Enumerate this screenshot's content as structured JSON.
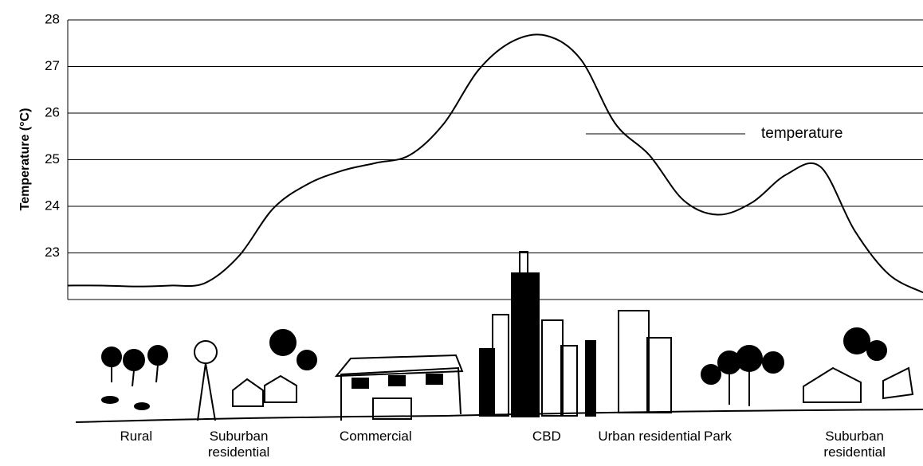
{
  "chart_data": {
    "type": "line",
    "y_label": "Temperature (°C)",
    "categories": [
      null,
      null,
      "Rural",
      null,
      null,
      "Suburban residential",
      null,
      null,
      null,
      "Commercial",
      null,
      null,
      null,
      null,
      "CBD",
      null,
      null,
      "Urban residential",
      null,
      "Park",
      null,
      null,
      null,
      "Suburban residential",
      null,
      null
    ],
    "series": [
      {
        "name": "temperature",
        "color": "#000000",
        "values": [
          22.3,
          22.3,
          22.28,
          22.3,
          22.35,
          22.93,
          23.95,
          24.47,
          24.76,
          24.93,
          25.1,
          25.78,
          26.92,
          27.54,
          27.66,
          27.15,
          25.78,
          25.1,
          24.13,
          23.82,
          24.08,
          24.68,
          24.85,
          23.48,
          22.54,
          22.15
        ]
      }
    ],
    "ylim": [
      22,
      28
    ],
    "yticks": [
      23,
      24,
      25,
      26,
      27,
      28
    ],
    "grid": true
  }
}
